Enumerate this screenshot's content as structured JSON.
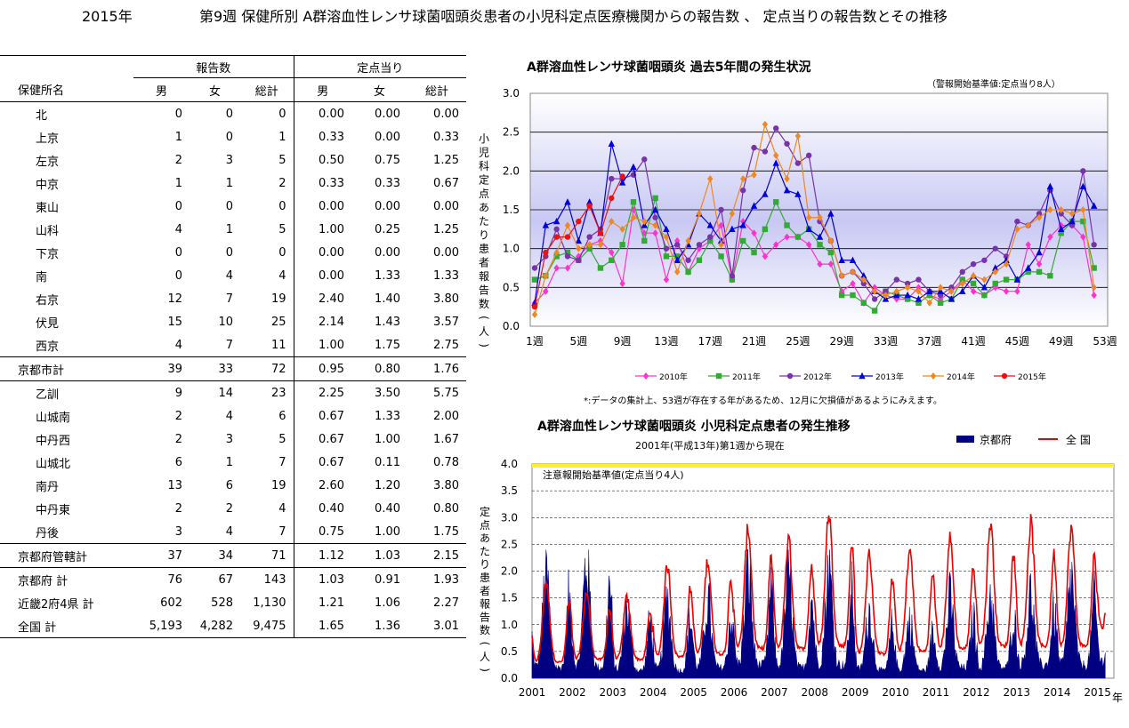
{
  "header": {
    "year": "2015年",
    "title": "第9週 保健所別 A群溶血性レンサ球菌咽頭炎患者の小児科定点医療機関からの報告数 、 定点当りの報告数とその推移"
  },
  "table": {
    "group_headers": {
      "reports": "報告数",
      "per_sentinel": "定点当り"
    },
    "columns": {
      "name": "保健所名",
      "male": "男",
      "female": "女",
      "total": "総計",
      "male2": "男",
      "female2": "女",
      "total2": "総計"
    },
    "rows": [
      {
        "name": "北",
        "m": "0",
        "f": "0",
        "t": "0",
        "pm": "0.00",
        "pf": "0.00",
        "pt": "0.00"
      },
      {
        "name": "上京",
        "m": "1",
        "f": "0",
        "t": "1",
        "pm": "0.33",
        "pf": "0.00",
        "pt": "0.33"
      },
      {
        "name": "左京",
        "m": "2",
        "f": "3",
        "t": "5",
        "pm": "0.50",
        "pf": "0.75",
        "pt": "1.25"
      },
      {
        "name": "中京",
        "m": "1",
        "f": "1",
        "t": "2",
        "pm": "0.33",
        "pf": "0.33",
        "pt": "0.67"
      },
      {
        "name": "東山",
        "m": "0",
        "f": "0",
        "t": "0",
        "pm": "0.00",
        "pf": "0.00",
        "pt": "0.00"
      },
      {
        "name": "山科",
        "m": "4",
        "f": "1",
        "t": "5",
        "pm": "1.00",
        "pf": "0.25",
        "pt": "1.25"
      },
      {
        "name": "下京",
        "m": "0",
        "f": "0",
        "t": "0",
        "pm": "0.00",
        "pf": "0.00",
        "pt": "0.00"
      },
      {
        "name": "南",
        "m": "0",
        "f": "4",
        "t": "4",
        "pm": "0.00",
        "pf": "1.33",
        "pt": "1.33"
      },
      {
        "name": "右京",
        "m": "12",
        "f": "7",
        "t": "19",
        "pm": "2.40",
        "pf": "1.40",
        "pt": "3.80"
      },
      {
        "name": "伏見",
        "m": "15",
        "f": "10",
        "t": "25",
        "pm": "2.14",
        "pf": "1.43",
        "pt": "3.57"
      },
      {
        "name": "西京",
        "m": "4",
        "f": "7",
        "t": "11",
        "pm": "1.00",
        "pf": "1.75",
        "pt": "2.75"
      }
    ],
    "city_total": {
      "name": "京都市計",
      "m": "39",
      "f": "33",
      "t": "72",
      "pm": "0.95",
      "pf": "0.80",
      "pt": "1.76"
    },
    "rows2": [
      {
        "name": "乙訓",
        "m": "9",
        "f": "14",
        "t": "23",
        "pm": "2.25",
        "pf": "3.50",
        "pt": "5.75"
      },
      {
        "name": "山城南",
        "m": "2",
        "f": "4",
        "t": "6",
        "pm": "0.67",
        "pf": "1.33",
        "pt": "2.00"
      },
      {
        "name": "中丹西",
        "m": "2",
        "f": "3",
        "t": "5",
        "pm": "0.67",
        "pf": "1.00",
        "pt": "1.67"
      },
      {
        "name": "山城北",
        "m": "6",
        "f": "1",
        "t": "7",
        "pm": "0.67",
        "pf": "0.11",
        "pt": "0.78"
      },
      {
        "name": "南丹",
        "m": "13",
        "f": "6",
        "t": "19",
        "pm": "2.60",
        "pf": "1.20",
        "pt": "3.80"
      },
      {
        "name": "中丹東",
        "m": "2",
        "f": "2",
        "t": "4",
        "pm": "0.40",
        "pf": "0.40",
        "pt": "0.80"
      },
      {
        "name": "丹後",
        "m": "3",
        "f": "4",
        "t": "7",
        "pm": "0.75",
        "pf": "1.00",
        "pt": "1.75"
      }
    ],
    "pref_jurisdiction_total": {
      "name": "京都府管轄計",
      "m": "37",
      "f": "34",
      "t": "71",
      "pm": "1.12",
      "pf": "1.03",
      "pt": "2.15"
    },
    "summary": [
      {
        "name": "京都府 計",
        "m": "76",
        "f": "67",
        "t": "143",
        "pm": "1.03",
        "pf": "0.91",
        "pt": "1.93"
      },
      {
        "name": "近畿2府4県 計",
        "m": "602",
        "f": "528",
        "t": "1,130",
        "pm": "1.21",
        "pf": "1.06",
        "pt": "2.27"
      },
      {
        "name": "全国 計",
        "m": "5,193",
        "f": "4,282",
        "t": "9,475",
        "pm": "1.65",
        "pf": "1.36",
        "pt": "3.01"
      }
    ]
  },
  "chart_data": [
    {
      "type": "line",
      "title": "A群溶血性レンサ球菌咽頭炎 過去5年間の発生状況",
      "note_top": "（警報開始基準値:定点当り8人）",
      "ylabel": "小児科定点あたり患者報告数(人)",
      "ylim": [
        0,
        3.0
      ],
      "yticks": [
        "0.0",
        "0.5",
        "1.0",
        "1.5",
        "2.0",
        "2.5",
        "3.0"
      ],
      "xticks": [
        "1週",
        "5週",
        "9週",
        "13週",
        "17週",
        "21週",
        "25週",
        "29週",
        "33週",
        "37週",
        "41週",
        "45週",
        "49週",
        "53週"
      ],
      "footnote": "*:データの集計上、53週が存在する年があるため、12月に欠損値があるようにみえます。",
      "series": [
        {
          "name": "2010年",
          "color": "#ff33cc",
          "marker": "diamond",
          "values": [
            0.3,
            0.45,
            0.75,
            0.75,
            0.9,
            1.05,
            1.1,
            0.95,
            0.55,
            1.5,
            1.2,
            1.2,
            0.6,
            1.1,
            0.7,
            1.0,
            1.1,
            1.3,
            0.6,
            1.35,
            1.2,
            0.9,
            1.05,
            1.15,
            1.15,
            1.05,
            0.8,
            0.8,
            0.45,
            0.55,
            0.3,
            0.5,
            0.4,
            0.35,
            0.35,
            0.5,
            0.4,
            0.35,
            0.45,
            0.6,
            0.45,
            0.4,
            0.5,
            0.45,
            0.45,
            1.05,
            0.8,
            1.15,
            1.3,
            1.3,
            1.15,
            0.4
          ]
        },
        {
          "name": "2011年",
          "color": "#33aa33",
          "marker": "square",
          "values": [
            0.6,
            0.65,
            0.9,
            0.95,
            0.85,
            1.0,
            0.75,
            0.85,
            1.05,
            1.6,
            1.1,
            1.65,
            0.9,
            0.9,
            0.7,
            0.85,
            1.1,
            0.9,
            0.6,
            1.1,
            0.95,
            1.25,
            1.6,
            1.3,
            1.15,
            1.25,
            1.05,
            0.95,
            0.4,
            0.4,
            0.3,
            0.2,
            0.45,
            0.4,
            0.35,
            0.3,
            0.4,
            0.3,
            0.35,
            0.6,
            0.55,
            0.4,
            0.55,
            0.6,
            0.6,
            0.7,
            0.7,
            0.65,
            1.2,
            1.35,
            1.35,
            0.75
          ]
        },
        {
          "name": "2012年",
          "color": "#7733aa",
          "marker": "circle",
          "values": [
            0.75,
            0.9,
            1.25,
            0.9,
            0.85,
            1.15,
            1.25,
            1.9,
            1.9,
            1.95,
            2.15,
            1.4,
            1.0,
            1.05,
            0.85,
            1.05,
            1.15,
            1.5,
            0.65,
            1.75,
            2.3,
            2.25,
            2.55,
            2.35,
            2.1,
            2.2,
            1.35,
            1.1,
            0.65,
            0.7,
            0.55,
            0.35,
            0.45,
            0.6,
            0.55,
            0.6,
            0.45,
            0.4,
            0.5,
            0.7,
            0.8,
            0.85,
            1.0,
            0.9,
            1.35,
            1.3,
            1.45,
            1.75,
            1.45,
            1.3,
            2.0,
            1.05
          ]
        },
        {
          "name": "2013年",
          "color": "#0000dd",
          "marker": "triangle",
          "values": [
            0.3,
            1.3,
            1.35,
            1.6,
            1.1,
            1.6,
            1.2,
            2.35,
            1.85,
            2.05,
            1.3,
            1.5,
            1.25,
            0.85,
            1.05,
            1.45,
            1.3,
            1.1,
            1.25,
            1.3,
            1.55,
            1.7,
            2.1,
            1.75,
            1.7,
            1.25,
            1.15,
            1.45,
            0.85,
            0.85,
            0.65,
            0.45,
            0.35,
            0.4,
            0.4,
            0.35,
            0.45,
            0.45,
            0.35,
            0.45,
            0.65,
            0.5,
            0.75,
            0.85,
            0.6,
            0.75,
            0.95,
            1.8,
            1.25,
            1.35,
            1.8,
            1.55
          ]
        },
        {
          "name": "2014年",
          "color": "#ee8822",
          "marker": "diamond",
          "values": [
            0.15,
            0.65,
            0.95,
            1.3,
            1.0,
            1.05,
            1.05,
            1.35,
            1.25,
            1.4,
            1.35,
            1.3,
            1.15,
            0.7,
            1.1,
            1.45,
            1.9,
            1.05,
            1.45,
            1.9,
            1.95,
            2.6,
            2.2,
            1.9,
            2.45,
            1.4,
            1.4,
            1.1,
            0.65,
            0.7,
            0.6,
            0.45,
            0.4,
            0.45,
            0.5,
            0.45,
            0.3,
            0.5,
            0.45,
            0.55,
            0.65,
            0.6,
            0.7,
            0.8,
            1.25,
            1.3,
            1.4,
            1.5,
            1.5,
            1.45,
            1.5,
            0.5
          ]
        },
        {
          "name": "2015年",
          "color": "#ee1111",
          "marker": "circle",
          "values": [
            0.25,
            0.95,
            1.15,
            1.15,
            1.35,
            1.55,
            1.2,
            1.65,
            1.93
          ]
        }
      ]
    },
    {
      "type": "area",
      "title": "A群溶血性レンサ球菌咽頭炎 小児科定点患者の発生推移",
      "subtitle": "2001年(平成13年)第1週から現在",
      "ylabel": "定点あたり患者報告数(人)",
      "note": "注意報開始基準値(定点当り4人)",
      "ylim": [
        0,
        4.0
      ],
      "yticks": [
        "0.0",
        "0.5",
        "1.0",
        "1.5",
        "2.0",
        "2.5",
        "3.0",
        "3.5",
        "4.0"
      ],
      "xticks": [
        "2001",
        "2002",
        "2003",
        "2004",
        "2005",
        "2006",
        "2007",
        "2008",
        "2009",
        "2010",
        "2011",
        "2012",
        "2013",
        "2014",
        "2015"
      ],
      "x_unit": "年",
      "legend_position": "top-right",
      "series": [
        {
          "name": "京都府",
          "color": "#000080",
          "yearly_peak": [
            2.0,
            2.3,
            1.4,
            1.5,
            1.5,
            2.1,
            2.0,
            2.1,
            1.3,
            1.1,
            1.5,
            1.6,
            1.6,
            1.9,
            1.9
          ],
          "yearly_trough": [
            0.2,
            0.2,
            0.15,
            0.15,
            0.2,
            0.25,
            0.2,
            0.25,
            0.15,
            0.15,
            0.2,
            0.2,
            0.25,
            0.25,
            0.3
          ]
        },
        {
          "name": "全 国",
          "color": "#ee0000",
          "yearly_peak": [
            1.8,
            1.6,
            1.5,
            2.1,
            2.2,
            2.8,
            2.6,
            3.1,
            2.3,
            2.4,
            2.6,
            2.9,
            2.9,
            2.8,
            3.0
          ],
          "yearly_trough": [
            0.3,
            0.35,
            0.35,
            0.4,
            0.45,
            0.55,
            0.55,
            0.6,
            0.45,
            0.5,
            0.55,
            0.6,
            0.6,
            0.6,
            0.9
          ]
        }
      ]
    }
  ]
}
